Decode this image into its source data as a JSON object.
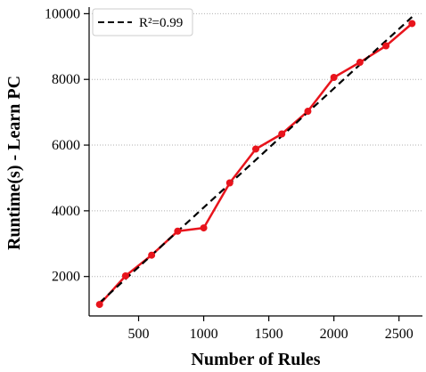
{
  "chart_data": {
    "type": "line",
    "xlabel": "Number of Rules",
    "ylabel": "Runtime(s) - Learn PC",
    "xlim": [
      120,
      2680
    ],
    "ylim": [
      800,
      10200
    ],
    "xticks": [
      500,
      1000,
      1500,
      2000,
      2500
    ],
    "yticks": [
      2000,
      4000,
      6000,
      8000,
      10000
    ],
    "grid": "horizontal-dotted",
    "legend_position": "top-left",
    "series": [
      {
        "style": "solid-line-with-markers",
        "color": "#e8141c",
        "x": [
          200,
          400,
          600,
          800,
          1000,
          1200,
          1400,
          1600,
          1800,
          2000,
          2200,
          2400,
          2600
        ],
        "y": [
          1150,
          2020,
          2650,
          3380,
          3480,
          4850,
          5880,
          6340,
          7030,
          8060,
          8520,
          9020,
          9700
        ]
      },
      {
        "name": "R²=0.99",
        "style": "dashed-line",
        "color": "#000000",
        "x": [
          200,
          2600
        ],
        "y": [
          1200,
          9900
        ]
      }
    ]
  }
}
